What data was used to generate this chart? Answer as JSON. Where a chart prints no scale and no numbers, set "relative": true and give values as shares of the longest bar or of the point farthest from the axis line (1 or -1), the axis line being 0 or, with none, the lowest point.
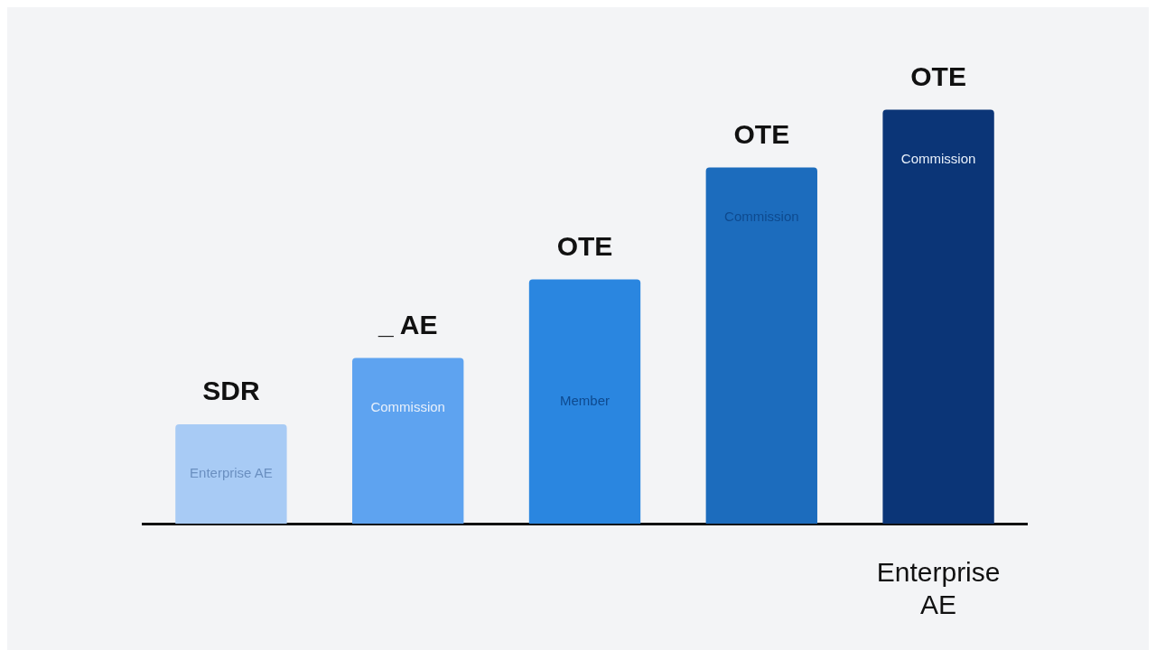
{
  "chart_data": {
    "type": "bar",
    "relative": true,
    "categories": [
      null,
      null,
      null,
      null,
      "Enterprise AE"
    ],
    "values": [
      0.24,
      0.4,
      0.59,
      0.86,
      1
    ],
    "colors": [
      "#a8cbf5",
      "#5ea3f0",
      "#2a86e0",
      "#1c6cbd",
      "#0b3577"
    ],
    "annotations": [
      "SDR",
      "_ AE",
      "OTE",
      "OTE",
      "OTE",
      "Enterprise AE",
      "Commission",
      "Member",
      "Commission",
      "Commission"
    ]
  }
}
